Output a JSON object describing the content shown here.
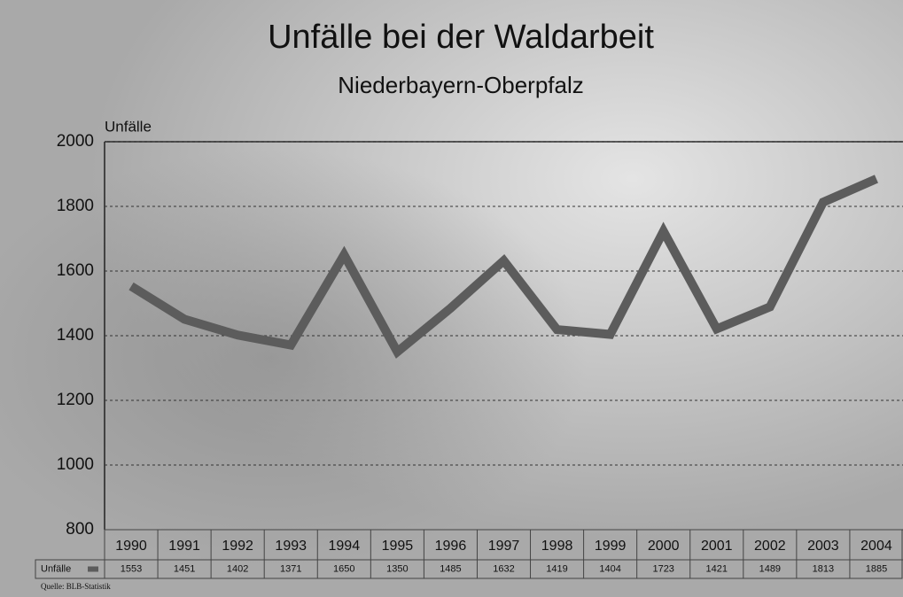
{
  "chart_data": {
    "type": "line",
    "title": "Unfälle bei der Waldarbeit",
    "subtitle": "Niederbayern-Oberpfalz",
    "y_label": "Unfälle",
    "source": "Quelle: BLB-Statistik",
    "categories": [
      "1990",
      "1991",
      "1992",
      "1993",
      "1994",
      "1995",
      "1996",
      "1997",
      "1998",
      "1999",
      "2000",
      "2001",
      "2002",
      "2003",
      "2004"
    ],
    "series": [
      {
        "name": "Unfälle",
        "color": "#5c5c5c",
        "values": [
          1553,
          1451,
          1402,
          1371,
          1650,
          1350,
          1485,
          1632,
          1419,
          1404,
          1723,
          1421,
          1489,
          1813,
          1885
        ]
      }
    ],
    "ylim": [
      800,
      2000
    ],
    "yticks": [
      800,
      1000,
      1200,
      1400,
      1600,
      1800,
      2000
    ],
    "grid": true
  }
}
